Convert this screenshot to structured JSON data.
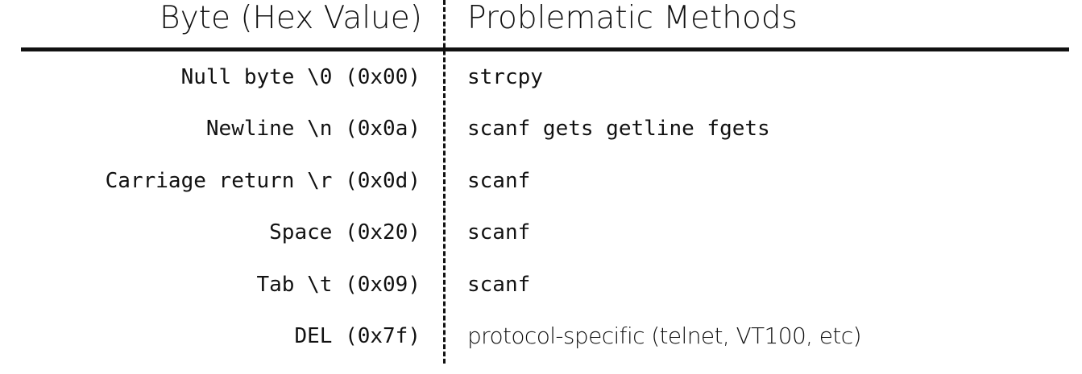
{
  "table": {
    "headers": {
      "byte": "Byte (Hex Value)",
      "methods": "Problematic Methods"
    },
    "rows": [
      {
        "byte": "Null byte \\0 (0x00)",
        "methods": "strcpy"
      },
      {
        "byte": "Newline \\n (0x0a)",
        "methods": "scanf gets getline fgets"
      },
      {
        "byte": "Carriage return \\r (0x0d)",
        "methods": "scanf"
      },
      {
        "byte": "Space (0x20)",
        "methods": "scanf"
      },
      {
        "byte": "Tab \\t (0x09)",
        "methods": "scanf"
      },
      {
        "byte": "DEL (0x7f)",
        "methods": "protocol-specific (telnet, VT100, etc)"
      }
    ]
  }
}
